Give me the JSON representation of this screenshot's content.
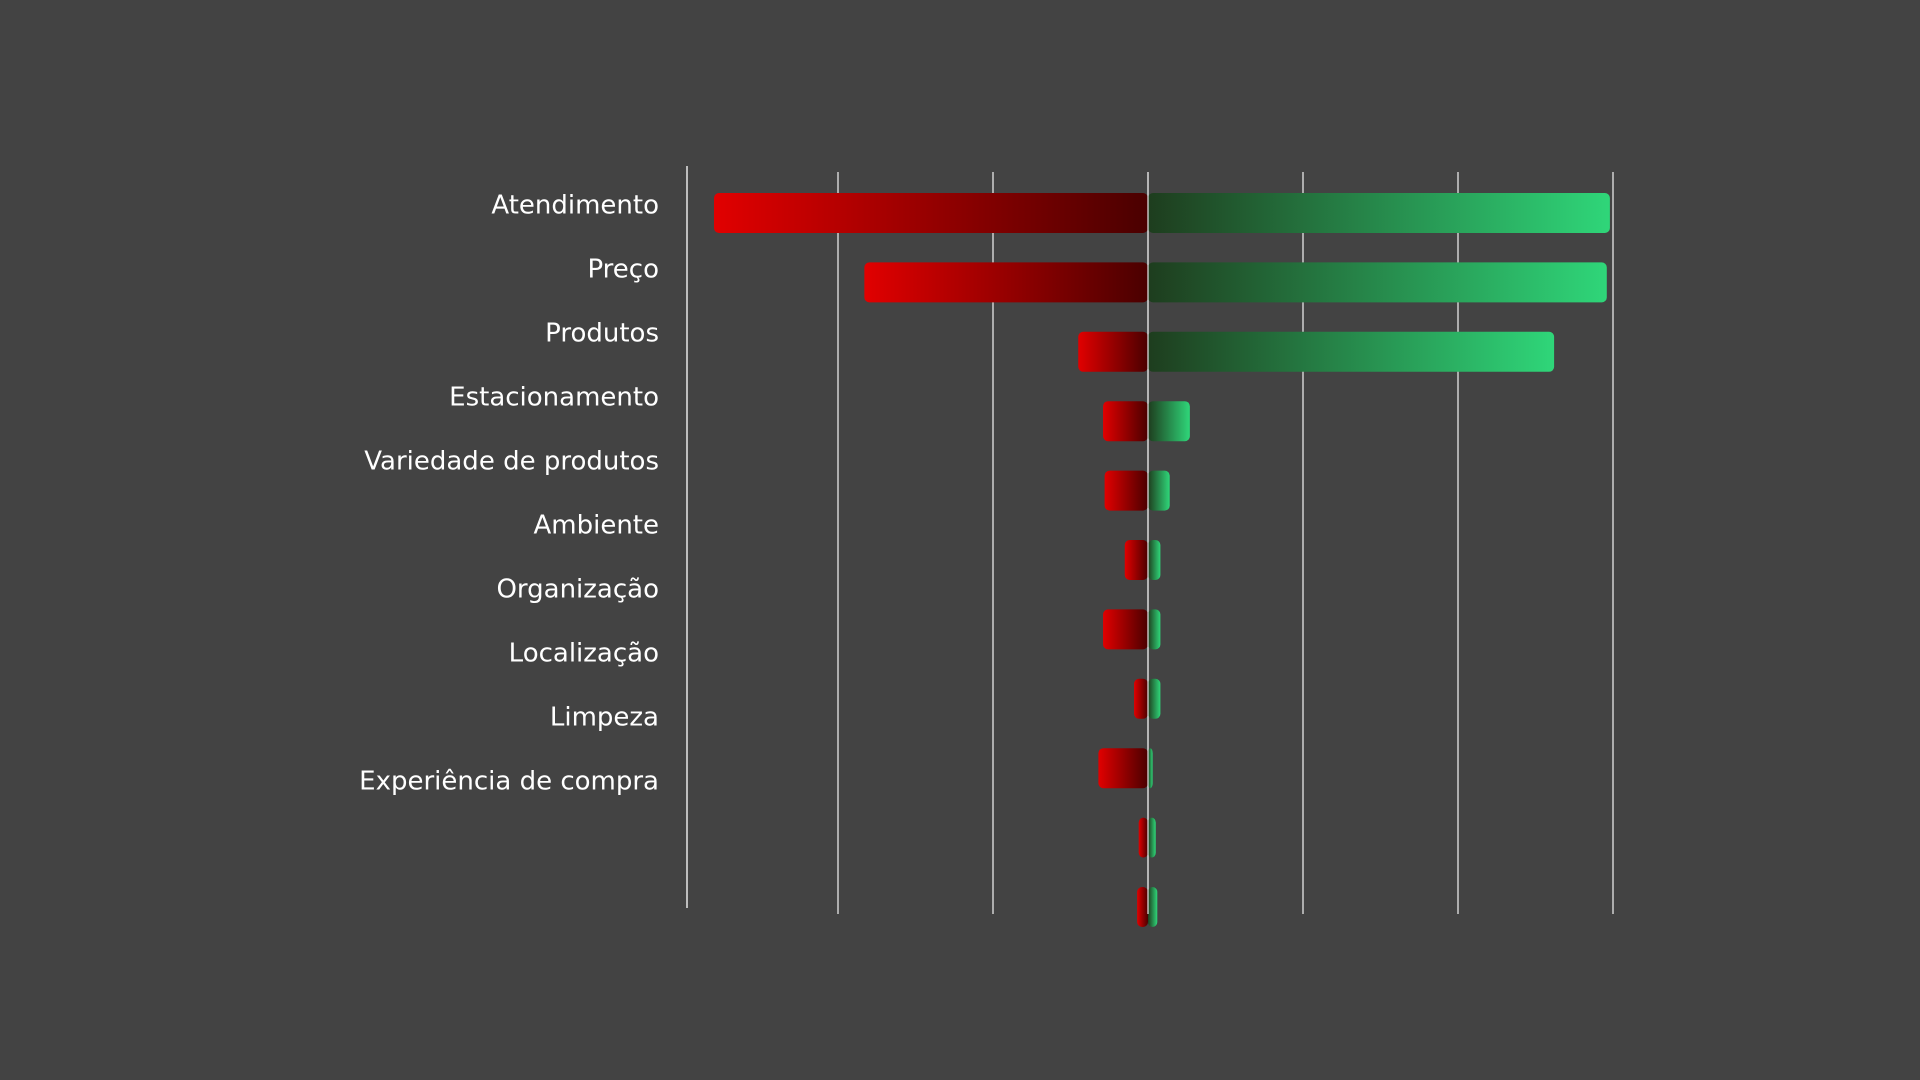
{
  "chart_data": {
    "type": "bar",
    "orientation": "horizontal",
    "stacking": "diverging",
    "categories": [
      "Atendimento",
      "Preço",
      "Produtos",
      "Estacionamento",
      "Variedade de produtos",
      "Ambiente",
      "Organização",
      "Localização",
      "Limpeza",
      "Experiência de compra",
      ""
    ],
    "series": [
      {
        "values": [
          -2.8,
          -1.83,
          -0.45,
          -0.29,
          -0.28,
          -0.15,
          -0.29,
          -0.09,
          -0.32,
          -0.06,
          -0.07
        ],
        "color_start": "#e10000",
        "color_end": "#4a0000"
      },
      {
        "values": [
          2.98,
          2.96,
          2.62,
          0.27,
          0.14,
          0.08,
          0.08,
          0.08,
          0.03,
          0.05,
          0.06
        ],
        "color_start": "#1e3d1e",
        "color_end": "#2fd679"
      }
    ],
    "xlim": [
      -3,
      3
    ],
    "x_gridlines": [
      -3,
      -2,
      -1,
      0,
      1,
      2,
      3
    ],
    "show_tick_labels": false,
    "title": "",
    "xlabel": "",
    "ylabel": "",
    "background": "#434343",
    "grid": true
  }
}
